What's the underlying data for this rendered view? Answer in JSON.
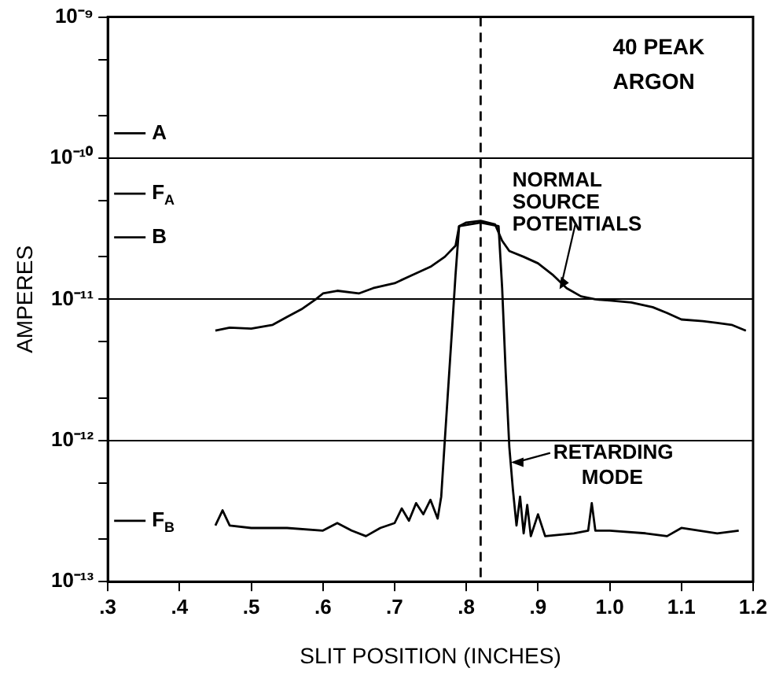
{
  "chart_data": {
    "type": "line",
    "title": "40 PEAK\nARGON",
    "xlabel": "SLIT POSITION (INCHES)",
    "ylabel": "AMPERES",
    "log": "y",
    "grid": "y",
    "legend": false,
    "marker": "none",
    "xlim": [
      0.3,
      1.2
    ],
    "xticks": [
      {
        "value": 0.3,
        "label": ".3"
      },
      {
        "value": 0.4,
        "label": ".4"
      },
      {
        "value": 0.5,
        "label": ".5"
      },
      {
        "value": 0.6,
        "label": ".6"
      },
      {
        "value": 0.7,
        "label": ".7"
      },
      {
        "value": 0.8,
        "label": ".8"
      },
      {
        "value": 0.9,
        "label": ".9"
      },
      {
        "value": 1.0,
        "label": "1.0"
      },
      {
        "value": 1.1,
        "label": "1.1"
      },
      {
        "value": 1.2,
        "label": "1.2"
      }
    ],
    "ylim": [
      1e-13,
      1e-09
    ],
    "yticks": [
      {
        "value": 1e-13,
        "label": "10⁻¹³"
      },
      {
        "value": 2e-13,
        "label": null
      },
      {
        "value": 5e-13,
        "label": null
      },
      {
        "value": 1e-12,
        "label": "10⁻¹²"
      },
      {
        "value": 2e-12,
        "label": null
      },
      {
        "value": 5e-12,
        "label": null
      },
      {
        "value": 1e-11,
        "label": "10⁻¹¹"
      },
      {
        "value": 2e-11,
        "label": null
      },
      {
        "value": 5e-11,
        "label": null
      },
      {
        "value": 1e-10,
        "label": "10⁻¹⁰"
      },
      {
        "value": 2e-10,
        "label": null
      },
      {
        "value": 5e-10,
        "label": null
      },
      {
        "value": 1e-09,
        "label": "10⁻⁹"
      }
    ],
    "series": [
      {
        "color": "#000000",
        "x": [
          0.45,
          0.47,
          0.5,
          0.53,
          0.55,
          0.57,
          0.59,
          0.6,
          0.62,
          0.65,
          0.67,
          0.7,
          0.72,
          0.75,
          0.77,
          0.785,
          0.79,
          0.8,
          0.82,
          0.84,
          0.85,
          0.86,
          0.88,
          0.9,
          0.92,
          0.94,
          0.96,
          0.98,
          1.0,
          1.03,
          1.06,
          1.08,
          1.1,
          1.13,
          1.15,
          1.17,
          1.19
        ],
        "values": [
          6e-12,
          6.3e-12,
          6.2e-12,
          6.6e-12,
          7.5e-12,
          8.5e-12,
          1e-11,
          1.1e-11,
          1.15e-11,
          1.1e-11,
          1.2e-11,
          1.3e-11,
          1.45e-11,
          1.7e-11,
          2e-11,
          2.4e-11,
          3.3e-11,
          3.5e-11,
          3.6e-11,
          3.4e-11,
          2.6e-11,
          2.2e-11,
          2e-11,
          1.8e-11,
          1.5e-11,
          1.2e-11,
          1.05e-11,
          1e-11,
          9.8e-12,
          9.5e-12,
          8.8e-12,
          8e-12,
          7.2e-12,
          7e-12,
          6.8e-12,
          6.6e-12,
          6e-12
        ]
      },
      {
        "color": "#000000",
        "x": [
          0.45,
          0.46,
          0.47,
          0.5,
          0.55,
          0.6,
          0.62,
          0.64,
          0.66,
          0.68,
          0.7,
          0.71,
          0.72,
          0.73,
          0.74,
          0.75,
          0.76,
          0.765,
          0.77,
          0.78,
          0.785,
          0.79,
          0.82,
          0.845,
          0.85,
          0.855,
          0.86,
          0.865,
          0.87,
          0.875,
          0.88,
          0.885,
          0.89,
          0.9,
          0.91,
          0.95,
          0.97,
          0.975,
          0.98,
          1.0,
          1.05,
          1.08,
          1.1,
          1.15,
          1.18
        ],
        "values": [
          2.5e-13,
          3.2e-13,
          2.5e-13,
          2.4e-13,
          2.4e-13,
          2.3e-13,
          2.6e-13,
          2.3e-13,
          2.1e-13,
          2.4e-13,
          2.6e-13,
          3.3e-13,
          2.7e-13,
          3.6e-13,
          3e-13,
          3.8e-13,
          2.8e-13,
          4e-13,
          1e-12,
          6e-12,
          1.5e-11,
          3.3e-11,
          3.5e-11,
          3.3e-11,
          1.2e-11,
          3e-12,
          9e-13,
          4.5e-13,
          2.5e-13,
          4e-13,
          2.2e-13,
          3.5e-13,
          2.1e-13,
          3e-13,
          2.1e-13,
          2.2e-13,
          2.3e-13,
          3.6e-13,
          2.3e-13,
          2.3e-13,
          2.2e-13,
          2.1e-13,
          2.4e-13,
          2.2e-13,
          2.3e-13
        ]
      }
    ],
    "ref_lines": [
      {
        "axis": "x",
        "value": 0.82,
        "line_style": "dashed"
      },
      {
        "axis": "y",
        "value": 1.5e-10,
        "label": "A"
      },
      {
        "axis": "y",
        "value": 5.6e-11,
        "label": "F$_{A}$"
      },
      {
        "axis": "y",
        "value": 2.75e-11,
        "label": "B"
      },
      {
        "axis": "y",
        "value": 2.7e-13,
        "label": "F$_{B}$"
      }
    ],
    "annotations": [
      {
        "text": "NORMAL\nSOURCE\nPOTENTIALS",
        "x": 0.93,
        "y": 1.15e-11
      },
      {
        "text": "RETARDING\nMODE",
        "x": 0.86,
        "y": 7e-13
      }
    ]
  }
}
